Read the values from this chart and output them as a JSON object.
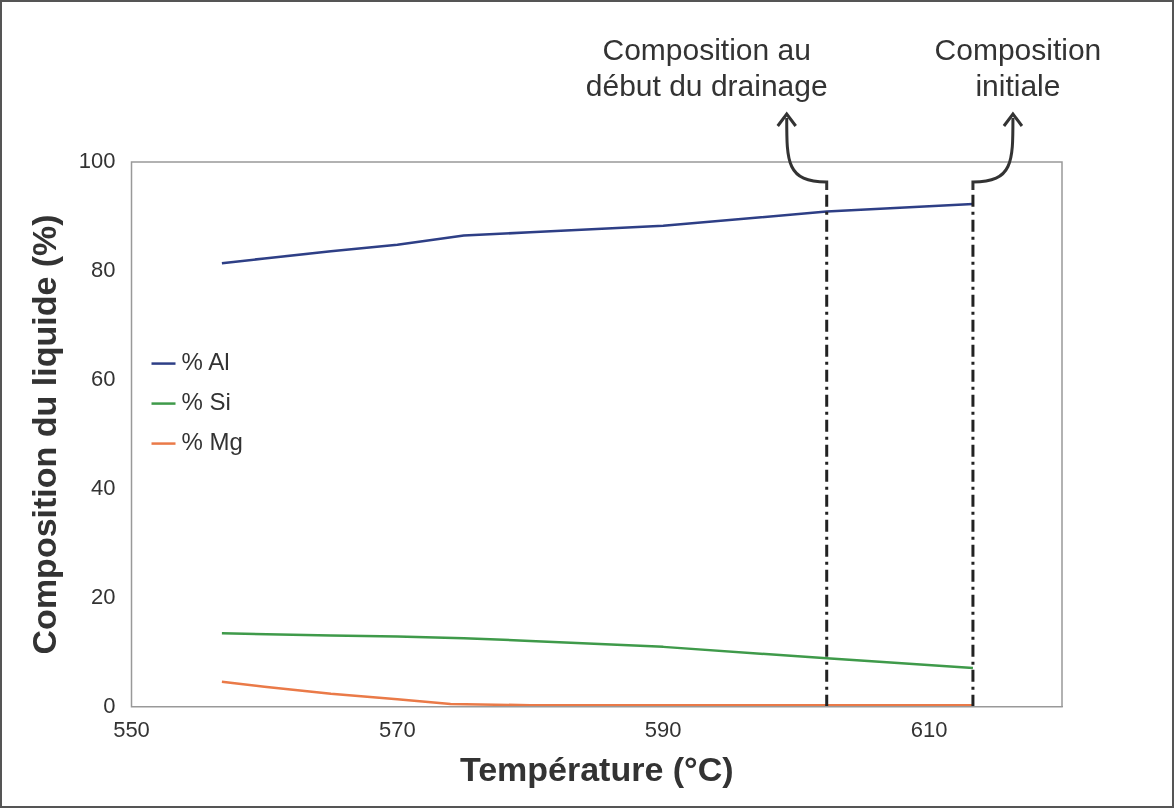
{
  "chart_data": {
    "type": "line",
    "xlabel": "Température (°C)",
    "ylabel": "Composition du liquide (%)",
    "xlim": [
      550,
      620
    ],
    "xticks": [
      550,
      570,
      590,
      610
    ],
    "ylim": [
      0,
      100
    ],
    "yticks": [
      0,
      20,
      40,
      60,
      80,
      100
    ],
    "grid": false,
    "legend": "left",
    "marker": "none",
    "line_style": "solid",
    "series": [
      {
        "name": "% Al",
        "color": "#2e3f86",
        "x": [
          556.8,
          560,
          565,
          570,
          575,
          580,
          590,
          602.3,
          613.3
        ],
        "values": [
          81.4,
          82.3,
          83.6,
          84.8,
          86.5,
          87.1,
          88.3,
          90.9,
          92.3
        ]
      },
      {
        "name": "% Si",
        "color": "#3f9a4a",
        "x": [
          556.8,
          565,
          570,
          575,
          580,
          590,
          602.3,
          613.3
        ],
        "values": [
          13.5,
          13.1,
          12.9,
          12.6,
          12.1,
          11.0,
          8.9,
          7.1
        ]
      },
      {
        "name": "% Mg",
        "color": "#ea7a48",
        "x": [
          556.8,
          560,
          565,
          570,
          574,
          580,
          590,
          602.3,
          613.3
        ],
        "values": [
          4.6,
          3.7,
          2.4,
          1.4,
          0.5,
          0.3,
          0.3,
          0.3,
          0.3
        ]
      }
    ],
    "ref_lines": [
      {
        "axis": "x",
        "value": 602.3,
        "label": "Composition au début du drainage",
        "color": "#222222",
        "line_style": "dashdot"
      },
      {
        "axis": "x",
        "value": 613.3,
        "label": "Composition initiale",
        "color": "#222222",
        "line_style": "dashdot"
      }
    ]
  }
}
